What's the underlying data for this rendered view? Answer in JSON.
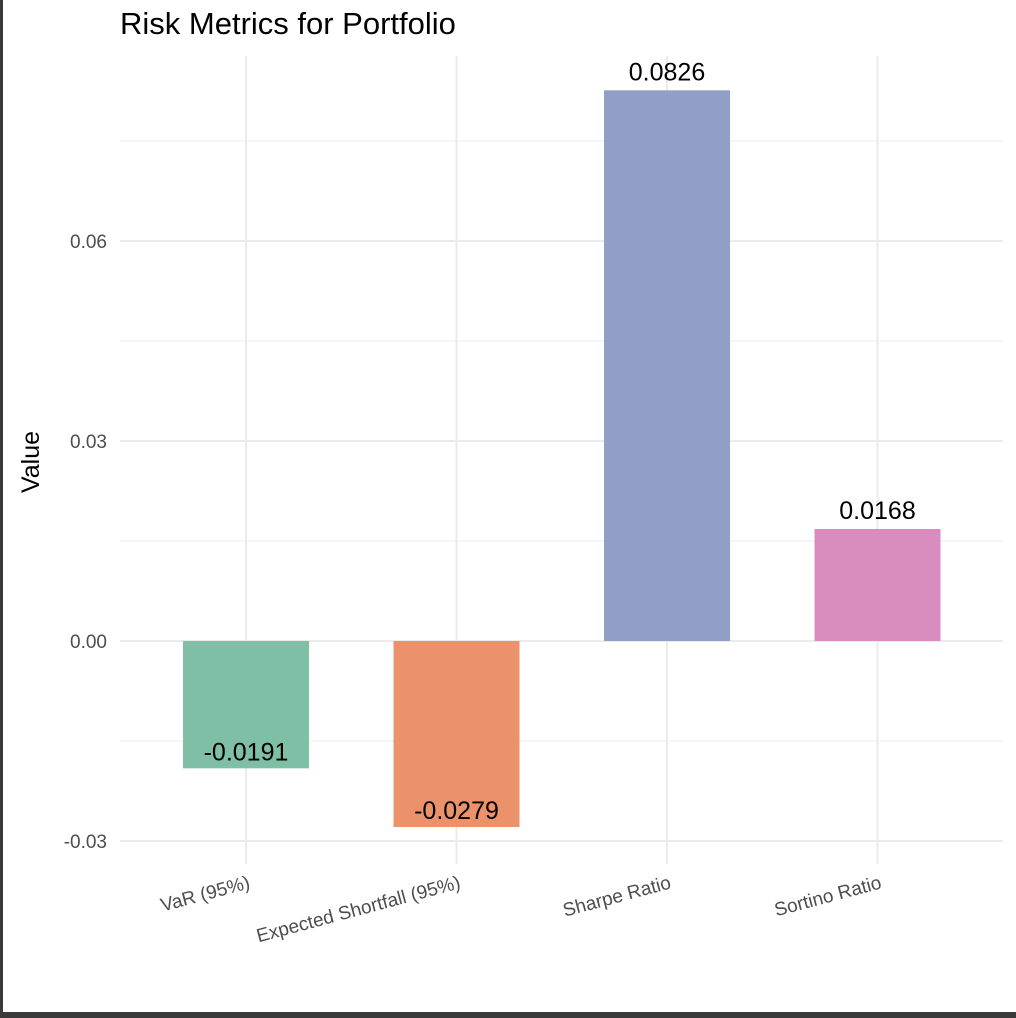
{
  "chart_data": {
    "type": "bar",
    "title": "Risk Metrics for Portfolio",
    "xlabel": "",
    "ylabel": "Value",
    "categories": [
      "VaR (95%)",
      "Expected Shortfall (95%)",
      "Sharpe Ratio",
      "Sortino Ratio"
    ],
    "values": [
      -0.0191,
      -0.0279,
      0.0826,
      0.0168
    ],
    "data_labels": [
      "-0.0191",
      "-0.0279",
      "0.0826",
      "0.0168"
    ],
    "colors": [
      "#7fbfa6",
      "#ec926b",
      "#919fc8",
      "#da8cbf"
    ],
    "ylim": [
      -0.03,
      0.0826
    ],
    "yticks": [
      -0.03,
      0.0,
      0.03,
      0.06
    ],
    "ytick_labels": [
      "-0.03",
      "0.00",
      "0.03",
      "0.06"
    ],
    "grid": true,
    "legend": "none"
  }
}
